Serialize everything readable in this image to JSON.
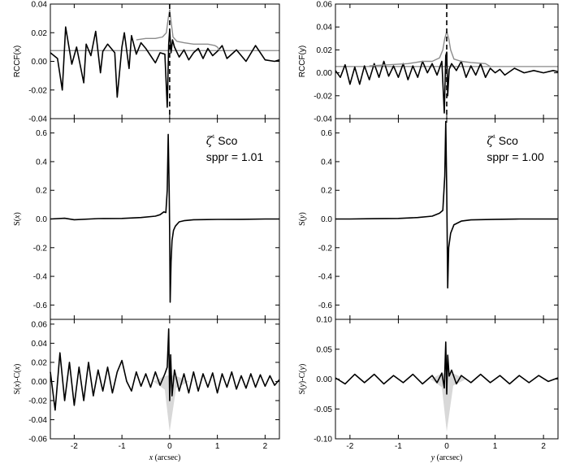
{
  "chart_data": [
    {
      "id": "left",
      "type": "line",
      "xlabel": "x (arcsec)",
      "xlim": [
        -2.5,
        2.3
      ],
      "xticks": [
        "-2",
        "-1",
        "0",
        "1",
        "2"
      ],
      "xtick_values": [
        -2,
        -1,
        0,
        1,
        2
      ],
      "annotation": {
        "star": "ζ¹ Sco",
        "sppr": "sppr = 1.01"
      },
      "panels": [
        {
          "name": "top",
          "ylabel": "RCCF(x)",
          "ylim": [
            -0.04,
            0.04
          ],
          "yticks": [
            "-0.04",
            "-0.02",
            "0.00",
            "0.02",
            "0.04"
          ],
          "ytick_values": [
            -0.04,
            -0.02,
            0.0,
            0.02,
            0.04
          ],
          "reference_level": 0.0075,
          "dashed_line_x": 0,
          "series": [
            {
              "x": [
                -2.5,
                -2.35,
                -2.25,
                -2.18,
                -2.05,
                -1.95,
                -1.8,
                -1.75,
                -1.65,
                -1.55,
                -1.45,
                -1.4,
                -1.3,
                -1.15,
                -1.1,
                -1.0,
                -0.95,
                -0.85,
                -0.8,
                -0.7,
                -0.6,
                -0.5,
                -0.4,
                -0.3,
                -0.2,
                -0.1,
                -0.05,
                -0.02,
                0.0,
                0.03,
                0.06,
                0.1,
                0.2,
                0.3,
                0.4,
                0.5,
                0.6,
                0.7,
                0.8,
                0.9,
                1.0,
                1.1,
                1.2,
                1.4,
                1.6,
                1.8,
                2.0,
                2.2,
                2.3
              ],
              "y": [
                0.006,
                0.002,
                -0.02,
                0.024,
                -0.002,
                0.01,
                -0.015,
                0.012,
                0.004,
                0.021,
                -0.008,
                0.007,
                0.012,
                0.006,
                -0.025,
                0.01,
                0.02,
                -0.005,
                0.018,
                0.005,
                0.013,
                0.009,
                0.004,
                -0.001,
                0.006,
                0.005,
                -0.032,
                0.012,
                0.022,
                0.006,
                0.015,
                0.01,
                0.003,
                0.008,
                0.001,
                0.006,
                0.009,
                0.002,
                0.009,
                0.004,
                0.007,
                0.011,
                0.002,
                0.008,
                0.0,
                0.011,
                0.001,
                0.0,
                0.001
              ]
            },
            {
              "x": [
                -0.7,
                -0.5,
                -0.3,
                -0.15,
                -0.07,
                -0.03,
                0.0,
                0.03,
                0.07,
                0.15,
                0.3,
                0.5,
                0.8,
                0.95,
                1.0,
                1.05
              ],
              "y": [
                0.015,
                0.016,
                0.016,
                0.017,
                0.02,
                0.03,
                0.036,
                0.028,
                0.017,
                0.014,
                0.013,
                0.012,
                0.012,
                0.011,
                0.01,
                0.0075
              ]
            }
          ]
        },
        {
          "name": "middle",
          "ylabel": "S(x)",
          "ylim": [
            -0.7,
            0.7
          ],
          "yticks": [
            "-0.6",
            "-0.4",
            "-0.2",
            "0.0",
            "0.2",
            "0.4",
            "0.6"
          ],
          "ytick_values": [
            -0.6,
            -0.4,
            -0.2,
            0.0,
            0.2,
            0.4,
            0.6
          ],
          "series": [
            {
              "x": [
                -2.5,
                -2.2,
                -2.0,
                -1.5,
                -1.0,
                -0.6,
                -0.3,
                -0.2,
                -0.12,
                -0.08,
                -0.05,
                -0.03,
                -0.01,
                0.0,
                0.01,
                0.03,
                0.05,
                0.08,
                0.12,
                0.2,
                0.3,
                0.5,
                1.0,
                1.5,
                2.0,
                2.3
              ],
              "y": [
                0.0,
                0.005,
                -0.005,
                0.003,
                0.004,
                0.01,
                0.02,
                0.03,
                0.05,
                0.045,
                0.2,
                0.59,
                0.2,
                -0.1,
                -0.58,
                -0.3,
                -0.15,
                -0.08,
                -0.05,
                -0.02,
                -0.012,
                -0.005,
                -0.003,
                -0.002,
                0.0,
                0.0
              ]
            }
          ]
        },
        {
          "name": "bottom",
          "ylabel": "S(x)-C(x)",
          "ylim": [
            -0.06,
            0.065
          ],
          "yticks": [
            "-0.06",
            "-0.04",
            "-0.02",
            "0.00",
            "0.02",
            "0.04",
            "0.06"
          ],
          "ytick_values": [
            -0.06,
            -0.04,
            -0.02,
            0.0,
            0.02,
            0.04,
            0.06
          ],
          "series": [
            {
              "x": [
                -2.5,
                -2.4,
                -2.3,
                -2.2,
                -2.1,
                -2.0,
                -1.9,
                -1.8,
                -1.7,
                -1.6,
                -1.5,
                -1.4,
                -1.3,
                -1.2,
                -1.1,
                -1.0,
                -0.9,
                -0.8,
                -0.7,
                -0.6,
                -0.5,
                -0.4,
                -0.3,
                -0.2,
                -0.1,
                -0.05,
                -0.02,
                0.0,
                0.02,
                0.05,
                0.1,
                0.2,
                0.3,
                0.4,
                0.5,
                0.6,
                0.7,
                0.8,
                0.9,
                1.0,
                1.1,
                1.2,
                1.3,
                1.4,
                1.5,
                1.6,
                1.7,
                1.8,
                1.9,
                2.0,
                2.1,
                2.2,
                2.3
              ],
              "y": [
                0.01,
                -0.03,
                0.03,
                -0.02,
                0.02,
                -0.025,
                0.015,
                -0.02,
                0.02,
                -0.015,
                0.012,
                -0.01,
                0.015,
                -0.012,
                0.01,
                0.022,
                0.0,
                -0.01,
                0.01,
                -0.005,
                0.008,
                -0.006,
                0.01,
                -0.004,
                0.008,
                0.015,
                0.055,
                -0.02,
                0.028,
                -0.015,
                0.012,
                -0.01,
                0.008,
                -0.012,
                0.01,
                -0.01,
                0.008,
                -0.006,
                0.009,
                -0.012,
                0.008,
                -0.006,
                0.01,
                -0.008,
                0.006,
                -0.007,
                0.008,
                -0.006,
                0.007,
                -0.005,
                0.006,
                -0.004,
                0.002
              ]
            }
          ]
        }
      ]
    },
    {
      "id": "right",
      "type": "line",
      "xlabel": "y (arcsec)",
      "xlim": [
        -2.3,
        2.3
      ],
      "xticks": [
        "-2",
        "-1",
        "0",
        "1",
        "2"
      ],
      "xtick_values": [
        -2,
        -1,
        0,
        1,
        2
      ],
      "annotation": {
        "star": "ζ¹ Sco",
        "sppr": "sppr = 1.00"
      },
      "panels": [
        {
          "name": "top",
          "ylabel": "RCCF(y)",
          "ylim": [
            -0.04,
            0.06
          ],
          "yticks": [
            "-0.04",
            "-0.02",
            "0.00",
            "0.02",
            "0.04",
            "0.06"
          ],
          "ytick_values": [
            -0.04,
            -0.02,
            0.0,
            0.02,
            0.04,
            0.06
          ],
          "reference_level": 0.0055,
          "dashed_line_x": 0,
          "series": [
            {
              "x": [
                -2.3,
                -2.2,
                -2.1,
                -2.0,
                -1.9,
                -1.8,
                -1.7,
                -1.6,
                -1.5,
                -1.4,
                -1.3,
                -1.2,
                -1.1,
                -1.0,
                -0.9,
                -0.8,
                -0.7,
                -0.6,
                -0.5,
                -0.4,
                -0.3,
                -0.2,
                -0.1,
                -0.05,
                -0.02,
                0.0,
                0.02,
                0.05,
                0.1,
                0.2,
                0.3,
                0.4,
                0.5,
                0.6,
                0.7,
                0.8,
                0.9,
                1.0,
                1.1,
                1.2,
                1.4,
                1.6,
                1.8,
                2.0,
                2.2,
                2.3
              ],
              "y": [
                0.002,
                -0.004,
                0.007,
                -0.01,
                0.005,
                -0.01,
                0.006,
                -0.006,
                0.008,
                -0.004,
                0.01,
                -0.003,
                0.006,
                -0.004,
                0.008,
                -0.006,
                0.006,
                -0.004,
                0.01,
                0.0,
                0.008,
                -0.002,
                0.01,
                -0.035,
                0.015,
                0.018,
                -0.02,
                0.003,
                0.008,
                0.002,
                0.01,
                -0.004,
                0.006,
                -0.002,
                0.008,
                -0.004,
                0.004,
                0.0,
                0.003,
                -0.002,
                0.004,
                0.0,
                0.002,
                0.0,
                0.002,
                0.001
              ]
            },
            {
              "x": [
                -1.6,
                -1.2,
                -0.8,
                -0.5,
                -0.3,
                -0.15,
                -0.08,
                -0.04,
                0.0,
                0.04,
                0.08,
                0.15,
                0.3,
                0.5,
                0.8,
                0.9
              ],
              "y": [
                0.006,
                0.007,
                0.008,
                0.01,
                0.01,
                0.013,
                0.02,
                0.03,
                0.036,
                0.03,
                0.02,
                0.012,
                0.01,
                0.009,
                0.008,
                0.0055
              ]
            }
          ]
        },
        {
          "name": "middle",
          "ylabel": "S(y)",
          "ylim": [
            -0.7,
            0.7
          ],
          "yticks": [
            "-0.6",
            "-0.4",
            "-0.2",
            "0.0",
            "0.2",
            "0.4",
            "0.6"
          ],
          "ytick_values": [
            -0.6,
            -0.4,
            -0.2,
            0.0,
            0.2,
            0.4,
            0.6
          ],
          "series": [
            {
              "x": [
                -2.3,
                -2.0,
                -1.5,
                -1.0,
                -0.6,
                -0.3,
                -0.15,
                -0.08,
                -0.04,
                -0.02,
                0.0,
                0.02,
                0.04,
                0.08,
                0.15,
                0.3,
                0.5,
                1.0,
                1.5,
                2.0,
                2.3
              ],
              "y": [
                0.0,
                0.0,
                0.002,
                0.004,
                0.01,
                0.02,
                0.04,
                0.06,
                0.3,
                0.68,
                0.2,
                -0.48,
                -0.2,
                -0.1,
                -0.04,
                -0.015,
                -0.006,
                -0.002,
                0.0,
                0.0,
                0.0
              ]
            }
          ]
        },
        {
          "name": "bottom",
          "ylabel": "S(y)-C(y)",
          "ylim": [
            -0.1,
            0.1
          ],
          "yticks": [
            "-0.10",
            "-0.05",
            "0.00",
            "0.05",
            "0.10"
          ],
          "ytick_values": [
            -0.1,
            -0.05,
            0.0,
            0.05,
            0.1
          ],
          "series": [
            {
              "x": [
                -2.3,
                -2.1,
                -1.9,
                -1.7,
                -1.5,
                -1.3,
                -1.1,
                -0.9,
                -0.7,
                -0.5,
                -0.3,
                -0.2,
                -0.1,
                -0.05,
                -0.02,
                0.0,
                0.02,
                0.05,
                0.1,
                0.2,
                0.3,
                0.5,
                0.7,
                0.9,
                1.1,
                1.3,
                1.5,
                1.7,
                1.9,
                2.1,
                2.3
              ],
              "y": [
                0.002,
                -0.008,
                0.008,
                -0.006,
                0.008,
                -0.008,
                0.006,
                -0.006,
                0.008,
                -0.008,
                0.006,
                -0.006,
                0.01,
                -0.015,
                0.062,
                -0.025,
                0.04,
                0.005,
                0.015,
                -0.008,
                0.006,
                -0.006,
                0.008,
                -0.006,
                0.006,
                -0.008,
                0.006,
                -0.006,
                0.006,
                -0.004,
                0.002
              ]
            }
          ]
        }
      ]
    }
  ]
}
